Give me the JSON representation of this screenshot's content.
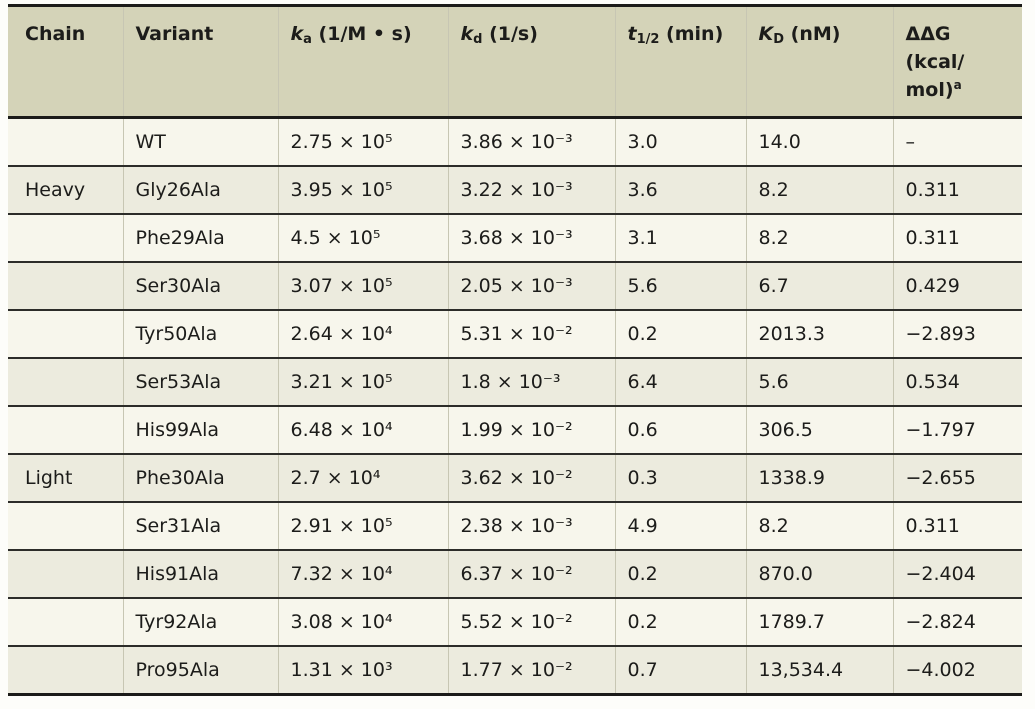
{
  "colors": {
    "header_background": "#d4d3b8",
    "row_light": "#f7f6ec",
    "row_shaded": "#ecebde",
    "rule_black": "#1b1b19",
    "row_rule": "#2c2c29",
    "column_divider": "#c7c6b3",
    "text": "#1c1c1a"
  },
  "table": {
    "columns": [
      {
        "id": "chain",
        "parts": [
          {
            "t": "Chain"
          }
        ]
      },
      {
        "id": "variant",
        "parts": [
          {
            "t": "Variant"
          }
        ]
      },
      {
        "id": "ka",
        "parts": [
          {
            "t": "k",
            "style": "i"
          },
          {
            "t": "a",
            "style": "sub"
          },
          {
            "t": " (1/M • s)"
          }
        ]
      },
      {
        "id": "kd",
        "parts": [
          {
            "t": "k",
            "style": "i"
          },
          {
            "t": "d",
            "style": "sub"
          },
          {
            "t": " (1/s)"
          }
        ]
      },
      {
        "id": "t-half",
        "parts": [
          {
            "t": "t",
            "style": "i"
          },
          {
            "t": "1/2",
            "style": "sub"
          },
          {
            "t": " (min)"
          }
        ]
      },
      {
        "id": "kD",
        "parts": [
          {
            "t": "K",
            "style": "i"
          },
          {
            "t": "D",
            "style": "sub"
          },
          {
            "t": " (nM)"
          }
        ]
      },
      {
        "id": "ddG",
        "parts": [
          {
            "t": "ΔΔG\n(kcal/\nmol)"
          },
          {
            "t": "a",
            "style": "sup"
          }
        ]
      }
    ],
    "rows": [
      {
        "cells": [
          "",
          "WT",
          "2.75 × 10⁵",
          "3.86 × 10⁻³",
          "3.0",
          "14.0",
          "–"
        ]
      },
      {
        "cells": [
          "Heavy",
          "Gly26Ala",
          "3.95 × 10⁵",
          "3.22 × 10⁻³",
          "3.6",
          "8.2",
          "0.311"
        ]
      },
      {
        "cells": [
          "",
          "Phe29Ala",
          "4.5 × 10⁵",
          "3.68 × 10⁻³",
          "3.1",
          "8.2",
          "0.311"
        ]
      },
      {
        "cells": [
          "",
          "Ser30Ala",
          "3.07 × 10⁵",
          "2.05 × 10⁻³",
          "5.6",
          "6.7",
          "0.429"
        ]
      },
      {
        "cells": [
          "",
          "Tyr50Ala",
          "2.64 × 10⁴",
          "5.31 × 10⁻²",
          "0.2",
          "2013.3",
          "−2.893"
        ]
      },
      {
        "cells": [
          "",
          "Ser53Ala",
          "3.21 × 10⁵",
          "1.8 × 10⁻³",
          "6.4",
          "5.6",
          "0.534"
        ]
      },
      {
        "cells": [
          "",
          "His99Ala",
          "6.48 × 10⁴",
          "1.99 × 10⁻²",
          "0.6",
          "306.5",
          "−1.797"
        ]
      },
      {
        "cells": [
          "Light",
          "Phe30Ala",
          "2.7 × 10⁴",
          "3.62 × 10⁻²",
          "0.3",
          "1338.9",
          "−2.655"
        ]
      },
      {
        "cells": [
          "",
          "Ser31Ala",
          "2.91 × 10⁵",
          "2.38 × 10⁻³",
          "4.9",
          "8.2",
          "0.311"
        ]
      },
      {
        "cells": [
          "",
          "His91Ala",
          "7.32 × 10⁴",
          "6.37 × 10⁻²",
          "0.2",
          "870.0",
          "−2.404"
        ]
      },
      {
        "cells": [
          "",
          "Tyr92Ala",
          "3.08 × 10⁴",
          "5.52 × 10⁻²",
          "0.2",
          "1789.7",
          "−2.824"
        ]
      },
      {
        "cells": [
          "",
          "Pro95Ala",
          "1.31 × 10³",
          "1.77 × 10⁻²",
          "0.7",
          "13,534.4",
          "−4.002"
        ]
      }
    ]
  }
}
